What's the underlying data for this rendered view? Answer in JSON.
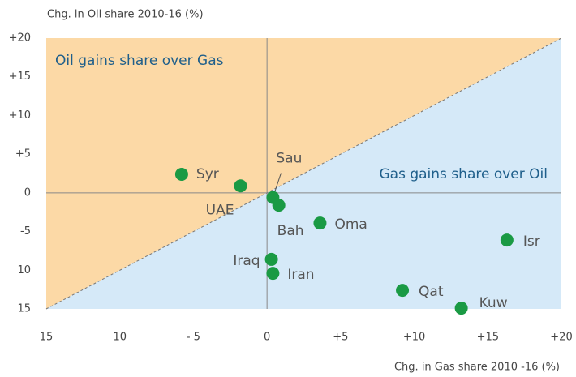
{
  "chart_data": {
    "type": "scatter",
    "x_label": "Chg. in Gas share 2010 -16 (%)",
    "y_label": "Chg. in Oil share 2010-16 (%)",
    "region_labels": [
      "Oil gains share over Gas",
      "Gas gains share over Oil"
    ],
    "region_colors": [
      "#fcd9a6",
      "#d5e9f8"
    ],
    "xlim": [
      -15,
      20
    ],
    "ylim": [
      -15,
      20
    ],
    "xticks": [
      {
        "value": -15,
        "label": "15"
      },
      {
        "value": -10,
        "label": "10"
      },
      {
        "value": -5,
        "label": "- 5"
      },
      0,
      {
        "value": 5,
        "label": "+5"
      },
      {
        "value": 10,
        "label": "+10"
      },
      {
        "value": 15,
        "label": "+15"
      },
      {
        "value": 20,
        "label": "+20"
      }
    ],
    "yticks": [
      {
        "value": 20,
        "label": "+20"
      },
      {
        "value": 15,
        "label": "+15"
      },
      {
        "value": 10,
        "label": "+10"
      },
      {
        "value": 5,
        "label": "+5"
      },
      0,
      {
        "value": -5,
        "label": "-5"
      },
      {
        "value": -10,
        "label": "10"
      },
      {
        "value": -15,
        "label": "15"
      }
    ],
    "series": [
      {
        "color": "#1a9a44",
        "labels": [
          "Syr",
          "UAE",
          "Sau",
          "Bah",
          "Oma",
          "Isr",
          "Iraq",
          "Iran",
          "Qat",
          "Kuw"
        ],
        "x": [
          -5.8,
          -1.8,
          0.4,
          0.8,
          3.6,
          16.3,
          0.3,
          0.4,
          9.2,
          13.2
        ],
        "values": [
          2.4,
          0.9,
          -0.6,
          -1.6,
          -3.9,
          -6.1,
          -8.6,
          -10.4,
          -12.6,
          -14.9
        ]
      }
    ]
  }
}
